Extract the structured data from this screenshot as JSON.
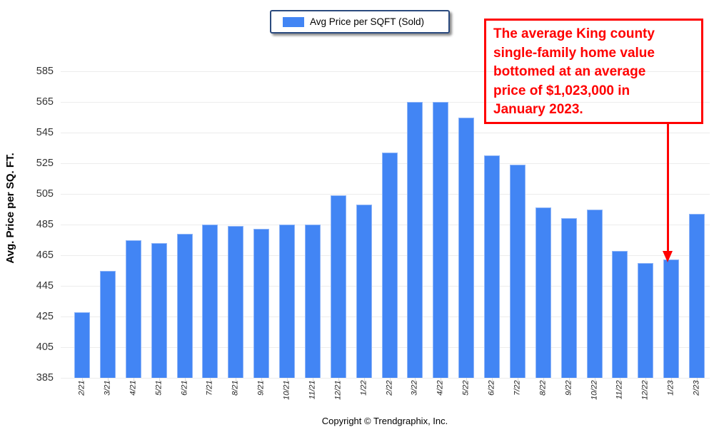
{
  "chart_data": {
    "type": "bar",
    "title": "",
    "legend": "Avg Price per SQFT (Sold)",
    "categories": [
      "2/21",
      "3/21",
      "4/21",
      "5/21",
      "6/21",
      "7/21",
      "8/21",
      "9/21",
      "10/21",
      "11/21",
      "12/21",
      "1/22",
      "2/22",
      "3/22",
      "4/22",
      "5/22",
      "6/22",
      "7/22",
      "8/22",
      "9/22",
      "10/22",
      "11/22",
      "12/22",
      "1/23",
      "2/23"
    ],
    "values": [
      428,
      455,
      475,
      473,
      479,
      485,
      484,
      482,
      485,
      485,
      504,
      498,
      532,
      565,
      565,
      555,
      530,
      524,
      496,
      489,
      495,
      468,
      460,
      462,
      492
    ],
    "xlabel": "",
    "ylabel": "Avg. Price per SQ. FT.",
    "ylim": [
      385,
      585
    ],
    "yticks": [
      385,
      405,
      425,
      445,
      465,
      485,
      505,
      525,
      545,
      565,
      585
    ],
    "grid": true,
    "legend_position": "top-center",
    "bar_color": "#4285F4"
  },
  "annotation": {
    "lines": [
      "The average King county",
      "single-family home value",
      "bottomed at an average",
      "price of $1,023,000 in",
      "January 2023."
    ],
    "color": "#FF0000",
    "points_at": "1/23"
  },
  "footer": {
    "copyright": "Copyright © Trendgraphix, Inc."
  },
  "colors": {
    "bar": "#4285F4",
    "bar_edge": "#8FB5F7",
    "legend_border": "#2B4A7E",
    "gridline": "#ECECEC",
    "annotation_red": "#FF0000",
    "axis_text": "#333333"
  }
}
